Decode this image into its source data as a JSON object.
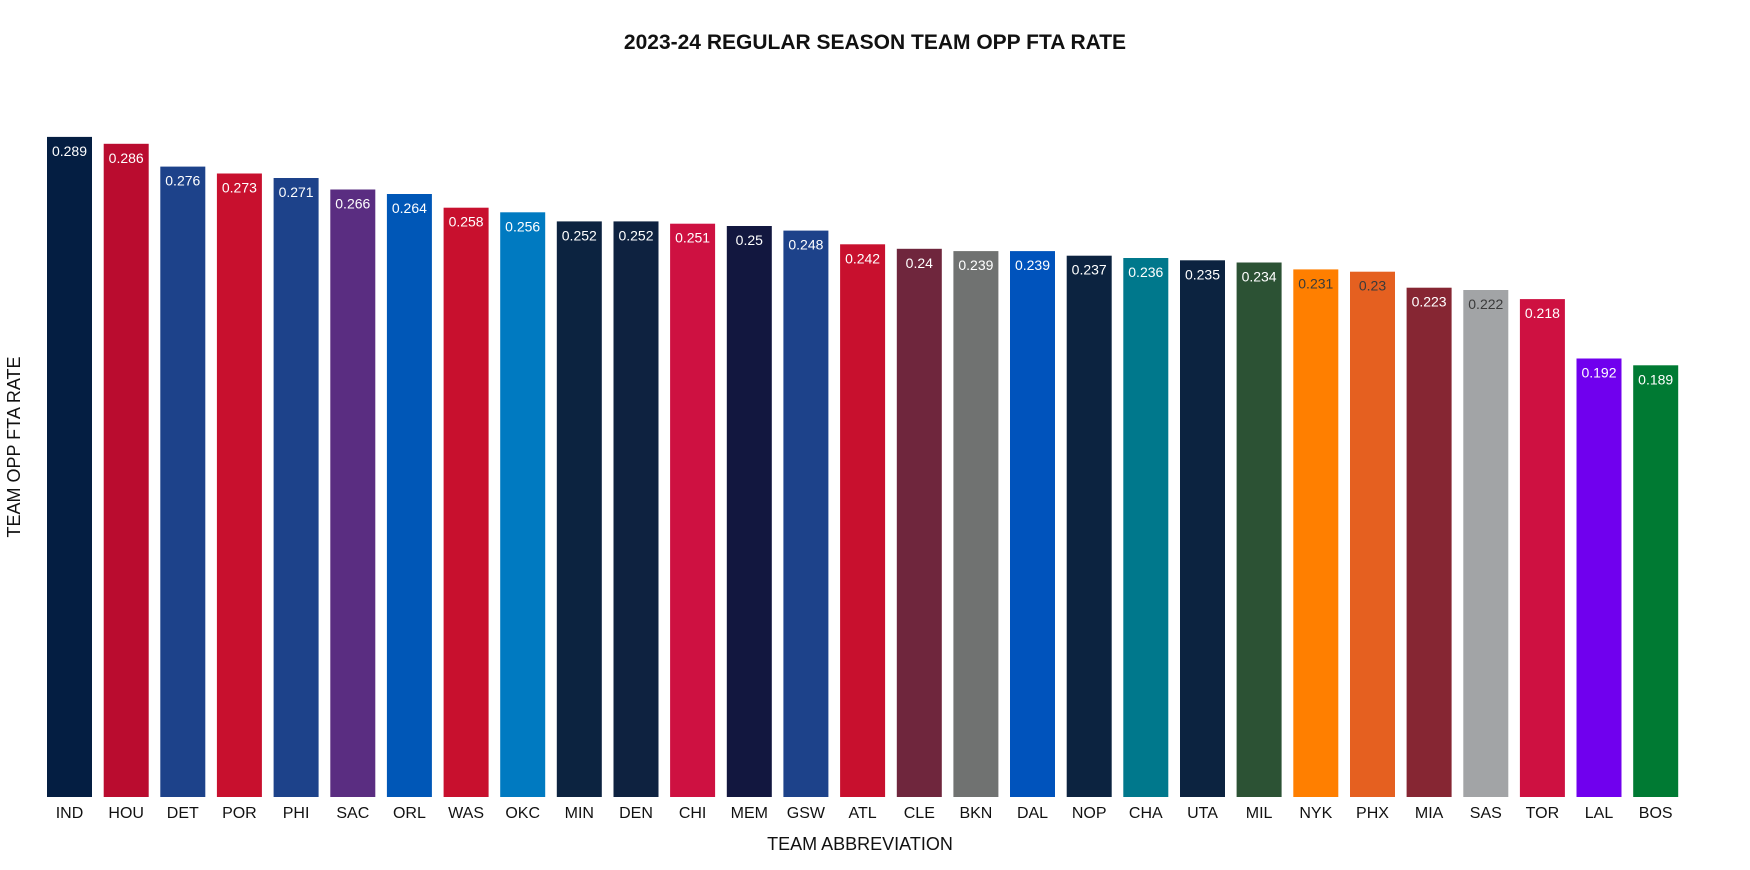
{
  "chart_data": {
    "type": "bar",
    "title": "2023-24 REGULAR SEASON TEAM OPP FTA RATE",
    "xlabel": "TEAM ABBREVIATION",
    "ylabel": "TEAM OPP FTA RATE",
    "ylim": [
      0,
      0.3
    ],
    "grid": false,
    "categories": [
      "IND",
      "HOU",
      "DET",
      "POR",
      "PHI",
      "SAC",
      "ORL",
      "WAS",
      "OKC",
      "MIN",
      "DEN",
      "CHI",
      "MEM",
      "GSW",
      "ATL",
      "CLE",
      "BKN",
      "DAL",
      "NOP",
      "CHA",
      "UTA",
      "MIL",
      "NYK",
      "PHX",
      "MIA",
      "SAS",
      "TOR",
      "LAL",
      "BOS"
    ],
    "values": [
      0.289,
      0.286,
      0.276,
      0.273,
      0.271,
      0.266,
      0.264,
      0.258,
      0.256,
      0.252,
      0.252,
      0.251,
      0.25,
      0.248,
      0.242,
      0.24,
      0.239,
      0.239,
      0.237,
      0.236,
      0.235,
      0.234,
      0.231,
      0.23,
      0.223,
      0.222,
      0.218,
      0.192,
      0.189
    ],
    "data_labels": [
      "0.289",
      "0.286",
      "0.276",
      "0.273",
      "0.271",
      "0.266",
      "0.264",
      "0.258",
      "0.256",
      "0.252",
      "0.252",
      "0.251",
      "0.25",
      "0.248",
      "0.242",
      "0.24",
      "0.239",
      "0.239",
      "0.237",
      "0.236",
      "0.235",
      "0.234",
      "0.231",
      "0.23",
      "0.223",
      "0.222",
      "0.218",
      "0.192",
      "0.189"
    ],
    "colors": [
      "#041e42",
      "#ba0c2f",
      "#1d428a",
      "#c8102e",
      "#1d428a",
      "#5a2d81",
      "#0057b7",
      "#c8102e",
      "#007ac1",
      "#0c2340",
      "#0e2240",
      "#ce1141",
      "#12173f",
      "#1d428a",
      "#c8102e",
      "#6f263d",
      "#707271",
      "#0053bc",
      "#0c2340",
      "#00788c",
      "#0c2340",
      "#2c5234",
      "#ff7f00",
      "#e56020",
      "#862633",
      "#a2a4a6",
      "#ce1141",
      "#7000ee",
      "#007a33"
    ],
    "label_colors": [
      "#ffffff",
      "#ffffff",
      "#ffffff",
      "#ffffff",
      "#ffffff",
      "#ffffff",
      "#ffffff",
      "#ffffff",
      "#ffffff",
      "#ffffff",
      "#ffffff",
      "#ffffff",
      "#ffffff",
      "#ffffff",
      "#ffffff",
      "#ffffff",
      "#ffffff",
      "#ffffff",
      "#ffffff",
      "#ffffff",
      "#ffffff",
      "#ffffff",
      "#3a3a3a",
      "#3a3a3a",
      "#ffffff",
      "#3a3a3a",
      "#ffffff",
      "#ffffff",
      "#ffffff"
    ]
  }
}
